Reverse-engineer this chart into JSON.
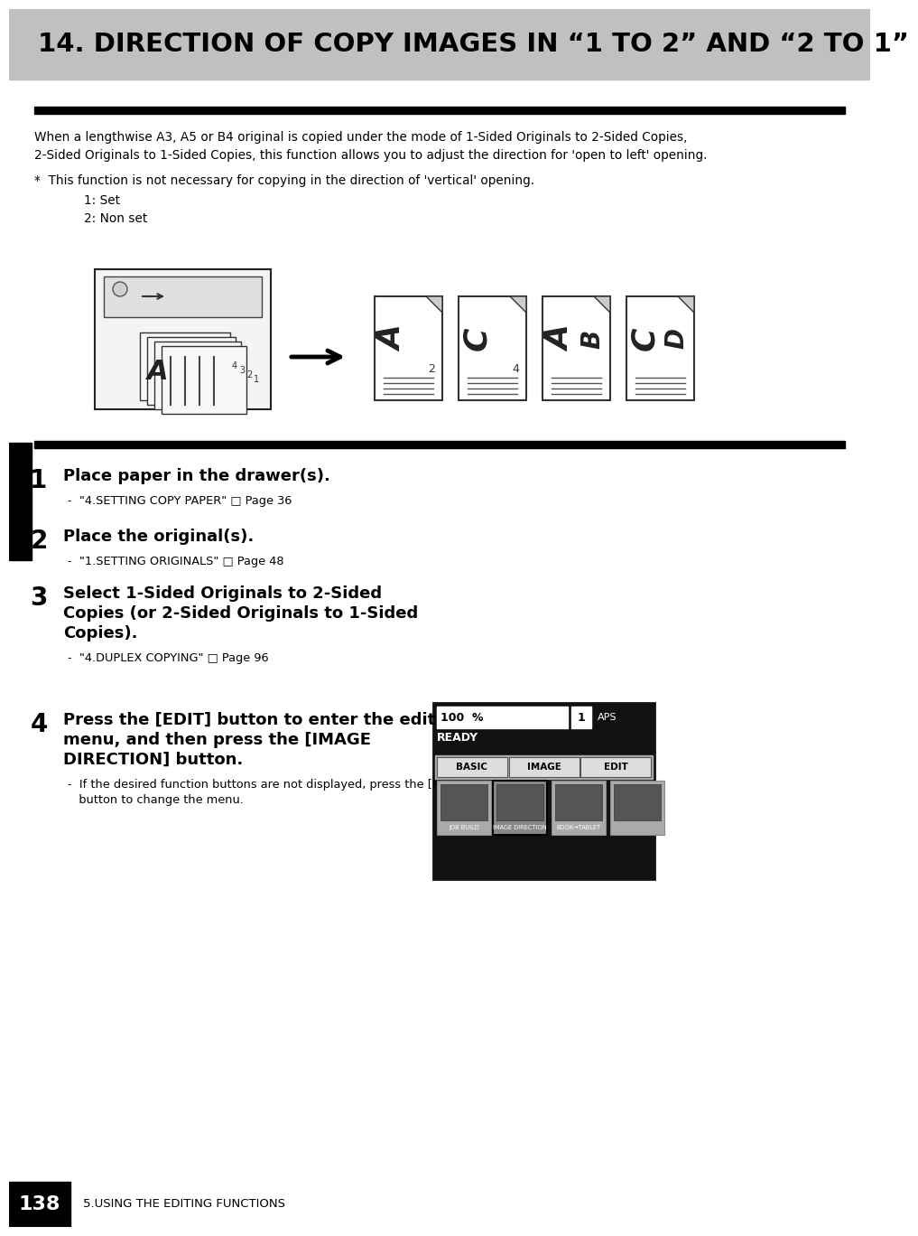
{
  "title": "14. DIRECTION OF COPY IMAGES IN “1 TO 2” AND “2 TO 1”",
  "title_bg": "#c0c0c0",
  "page_number": "138",
  "footer_text": "5.USING THE EDITING FUNCTIONS",
  "intro_line1": "When a lengthwise A3, A5 or B4 original is copied under the mode of 1-Sided Originals to 2-Sided Copies,",
  "intro_line2": "2-Sided Originals to 1-Sided Copies, this function allows you to adjust the direction for 'open to left' opening.",
  "note_line1": "*  This function is not necessary for copying in the direction of 'vertical' opening.",
  "note_sub1": "1: Set",
  "note_sub2": "2: Non set",
  "steps": [
    {
      "number": "1",
      "bold": "Place paper in the drawer(s).",
      "sub": "-  \"4.SETTING COPY PAPER\" □ Page 36"
    },
    {
      "number": "2",
      "bold": "Place the original(s).",
      "sub": "-  \"1.SETTING ORIGINALS\" □ Page 48"
    },
    {
      "number": "3",
      "bold": "Select 1-Sided Originals to 2-Sided\nCopies (or 2-Sided Originals to 1-Sided\nCopies).",
      "sub": "-  \"4.DUPLEX COPYING\" □ Page 96"
    },
    {
      "number": "4",
      "bold": "Press the [EDIT] button to enter the edit\nmenu, and then press the [IMAGE\nDIRECTION] button.",
      "sub": "-  If the desired function buttons are not displayed, press the [Next]\n   button to change the menu."
    }
  ]
}
